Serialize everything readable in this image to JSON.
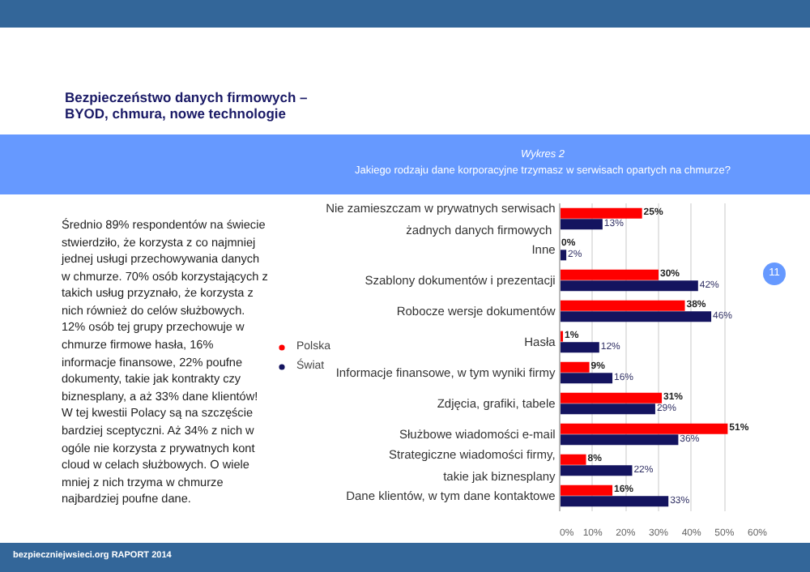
{
  "chart_data": {
    "type": "bar",
    "orientation": "horizontal",
    "title": "Wykres 2",
    "subtitle": "Jakiego rodzaju dane korporacyjne trzymasz w serwisach opartych na chmurze?",
    "categories": [
      "Nie zamieszczam w prywatnych serwisach\nżadnych danych  firmowych",
      "Inne",
      "Szablony dokumentów i prezentacji",
      "Robocze wersje dokumentów",
      "Hasła",
      "Informacje finansowe, w tym wyniki firmy",
      "Zdjęcia, grafiki, tabele",
      "Służbowe wiadomości e-mail",
      "Strategiczne wiadomości firmy,\ntakie jak biznesplany",
      "Dane klientów, w tym dane kontaktowe"
    ],
    "series": [
      {
        "name": "Polska",
        "color": "#ff0000",
        "values": [
          25,
          0,
          30,
          38,
          1,
          9,
          31,
          51,
          8,
          16
        ],
        "value_labels": [
          "25%",
          "0%",
          "30%",
          "38%",
          "1%",
          "9%",
          "31%",
          "51%",
          "8%",
          "16%"
        ]
      },
      {
        "name": "Świat",
        "color": "#14145f",
        "values": [
          13,
          2,
          42,
          46,
          12,
          16,
          29,
          36,
          22,
          33
        ],
        "value_labels": [
          "13%",
          "2%",
          "42%",
          "46%",
          "12%",
          "16%",
          "29%",
          "36%",
          "22%",
          "33%"
        ]
      }
    ],
    "xlim": [
      0,
      60
    ],
    "xticks": [
      {
        "value": 0,
        "label": "0%"
      },
      {
        "value": 10,
        "label": "10%"
      },
      {
        "value": 20,
        "label": "20%"
      },
      {
        "value": 30,
        "label": "30%"
      },
      {
        "value": 40,
        "label": "40%"
      },
      {
        "value": 50,
        "label": "50%"
      },
      {
        "value": 60,
        "label": "60%"
      }
    ],
    "grid": "x",
    "legend": "left",
    "annotations": [
      "Bezpieczeństwo danych firmowych –\nBYOD, chmura, nowe technologie",
      "Średnio 89% respondentów na świecie stwierdziło, że korzysta z co najmniej jednej usługi przechowywania danych w chmurze. 70% osób korzystających z takich usług przyznało, że korzysta z nich również do celów służbowych. 12% osób tej grupy przechowuje w chmurze firmowe hasła, 16% informacje finansowe, 22% poufne dokumenty, takie jak kontrakty czy biznesplany, a aż 33% dane klientów!\n W tej kwestii Polacy są na szczęście bardziej sceptyczni. Aż 34% z nich w ogóle nie korzysta z prywatnych kont cloud w celach służbowych. O wiele mniej z nich trzyma w chmurze najbardziej poufne dane.",
      "bezpieczniejwsieci.org RAPORT 2014",
      "11"
    ]
  }
}
